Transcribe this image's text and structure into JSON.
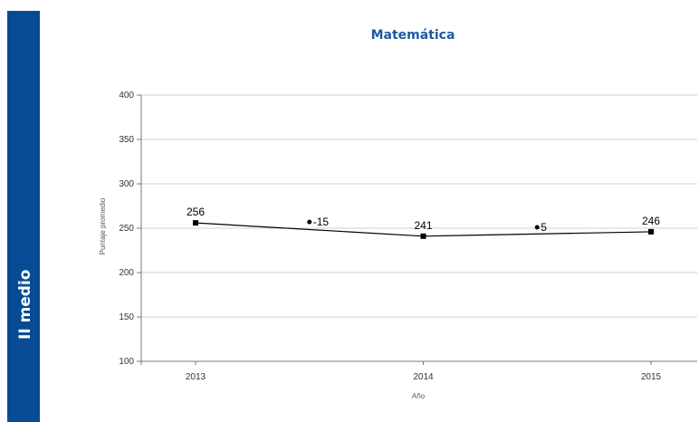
{
  "side_label": "II medio",
  "chart_data": {
    "type": "line",
    "title": "Matemática",
    "xlabel": "Año",
    "ylabel": "Puntaje promedio",
    "categories": [
      "2013",
      "2014",
      "2015"
    ],
    "series": [
      {
        "values": [
          256,
          241,
          246
        ],
        "labels": [
          "256",
          "241",
          "246"
        ]
      }
    ],
    "annotations": [
      {
        "x": 2013.5,
        "y": 257,
        "text": "-15"
      },
      {
        "x": 2014.5,
        "y": 251,
        "text": "5"
      }
    ],
    "ylim": [
      100,
      400
    ],
    "yticks": [
      100,
      150,
      200,
      250,
      300,
      350,
      400
    ],
    "grid": true,
    "colors": {
      "line": "#000000",
      "grid": "#d0d0d0",
      "axis": "#777777",
      "side_band": "#064b93",
      "title": "#1d5aa3"
    }
  }
}
